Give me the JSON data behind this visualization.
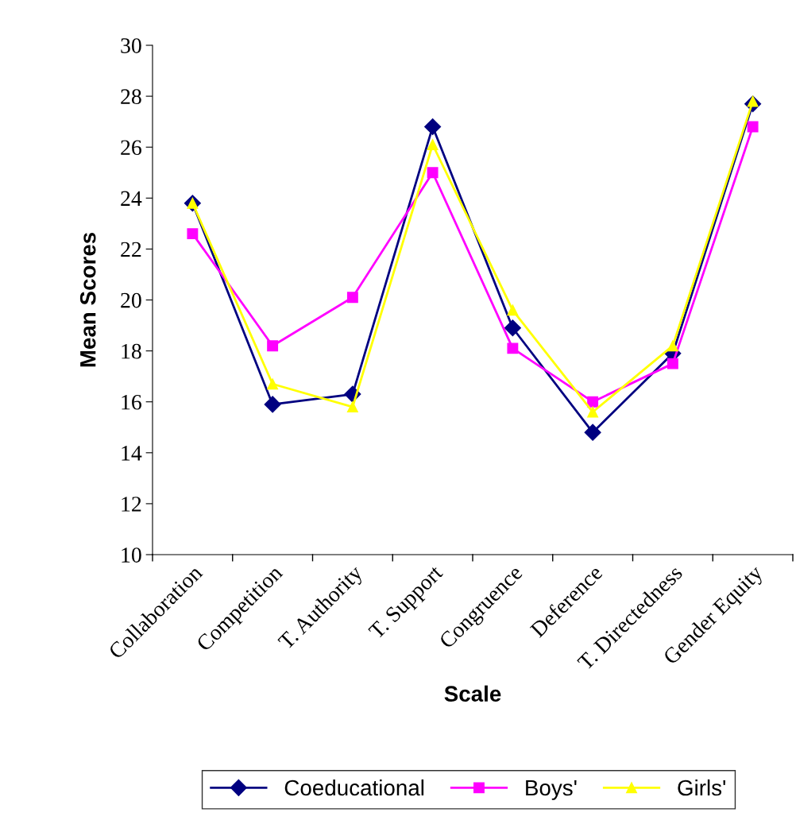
{
  "chart_data": {
    "type": "line",
    "xlabel": "Scale",
    "ylabel": "Mean Scores",
    "categories": [
      "Collaboration",
      "Competition",
      "T. Authority",
      "T. Support",
      "Congruence",
      "Deference",
      "T. Directedness",
      "Gender Equity"
    ],
    "series": [
      {
        "name": "Coeducational",
        "color": "#000080",
        "marker": "diamond",
        "values": [
          23.8,
          15.9,
          16.3,
          26.8,
          18.9,
          14.8,
          17.9,
          27.7
        ]
      },
      {
        "name": "Boys'",
        "color": "#ff00ff",
        "marker": "square",
        "values": [
          22.6,
          18.2,
          20.1,
          25.0,
          18.1,
          16.0,
          17.5,
          26.8
        ]
      },
      {
        "name": "Girls'",
        "color": "#ffff00",
        "marker": "triangle",
        "values": [
          23.8,
          16.7,
          15.8,
          26.1,
          19.6,
          15.6,
          18.2,
          27.8
        ]
      }
    ],
    "ylim": [
      10,
      30
    ],
    "yticks": [
      10,
      12,
      14,
      16,
      18,
      20,
      22,
      24,
      26,
      28,
      30
    ],
    "grid": false,
    "legend": "bottom",
    "line_style": "solid"
  }
}
